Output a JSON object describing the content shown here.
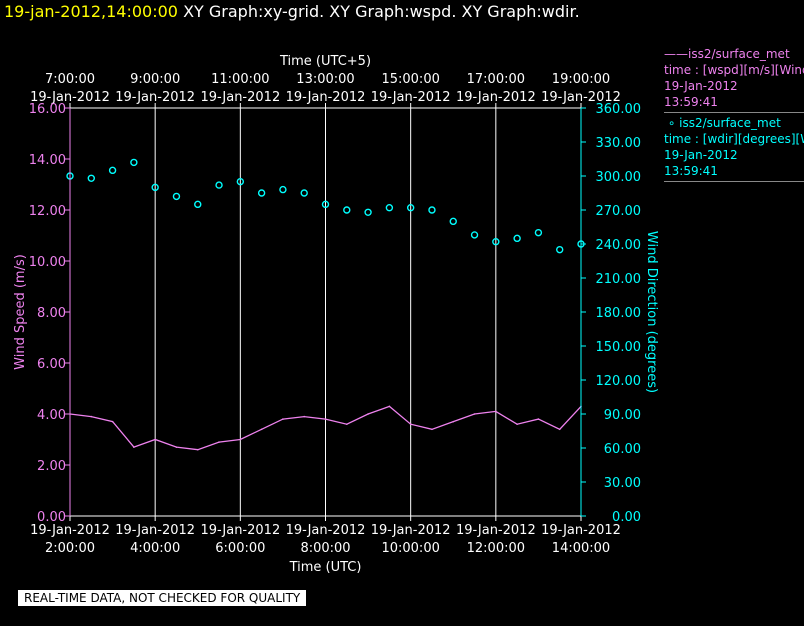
{
  "header": {
    "timestamp": "19-jan-2012,14:00:00",
    "graphs": "XY Graph:xy-grid.  XY Graph:wspd.  XY Graph:wdir."
  },
  "legend": {
    "wspd": {
      "name": "iss2/surface_met",
      "desc": "time : [wspd][m/s][Wind",
      "date": "19-Jan-2012",
      "time": "13:59:41"
    },
    "wdir": {
      "name": "iss2/surface_met",
      "desc": "time : [wdir][degrees][W",
      "date": "19-Jan-2012",
      "time": "13:59:41"
    }
  },
  "quality_note": "REAL-TIME DATA, NOT CHECKED FOR QUALITY",
  "colors": {
    "wspd": "#ee82ee",
    "wdir": "#00ffff",
    "axis_left": "#ee82ee",
    "axis_right": "#00ffff",
    "header_time": "#ffff00"
  },
  "chart_data": {
    "type": "line",
    "xlabel_bottom": "Time (UTC)",
    "xlabel_top": "Time (UTC+5)",
    "ylabel_left": "Wind Speed (m/s)",
    "ylabel_right": "Wind Direction (degrees)",
    "ylim_left": [
      0,
      16
    ],
    "ylim_right": [
      0,
      360
    ],
    "xlim": [
      "2012-01-19 02:00",
      "2012-01-19 14:00"
    ],
    "grid": "vertical",
    "bottom_ticks": [
      {
        "date": "19-Jan-2012",
        "time": "2:00:00"
      },
      {
        "date": "19-Jan-2012",
        "time": "4:00:00"
      },
      {
        "date": "19-Jan-2012",
        "time": "6:00:00"
      },
      {
        "date": "19-Jan-2012",
        "time": "8:00:00"
      },
      {
        "date": "19-Jan-2012",
        "time": "10:00:00"
      },
      {
        "date": "19-Jan-2012",
        "time": "12:00:00"
      },
      {
        "date": "19-Jan-2012",
        "time": "14:00:00"
      }
    ],
    "top_ticks": [
      {
        "time": "7:00:00",
        "date": "19-Jan-2012"
      },
      {
        "time": "9:00:00",
        "date": "19-Jan-2012"
      },
      {
        "time": "11:00:00",
        "date": "19-Jan-2012"
      },
      {
        "time": "13:00:00",
        "date": "19-Jan-2012"
      },
      {
        "time": "15:00:00",
        "date": "19-Jan-2012"
      },
      {
        "time": "17:00:00",
        "date": "19-Jan-2012"
      },
      {
        "time": "19:00:00",
        "date": "19-Jan-2012"
      }
    ],
    "left_ticks": [
      "0.00",
      "2.00",
      "4.00",
      "6.00",
      "8.00",
      "10.00",
      "12.00",
      "14.00",
      "16.00"
    ],
    "right_ticks": [
      "0.00",
      "30.00",
      "60.00",
      "90.00",
      "120.00",
      "150.00",
      "180.00",
      "210.00",
      "240.00",
      "270.00",
      "300.00",
      "330.00",
      "360.00"
    ],
    "series": [
      {
        "name": "iss2/surface_met wspd",
        "axis": "left",
        "style": "line",
        "x": [
          "2012-01-19 02:00",
          "2012-01-19 02:30",
          "2012-01-19 03:00",
          "2012-01-19 03:30",
          "2012-01-19 04:00",
          "2012-01-19 04:30",
          "2012-01-19 05:00",
          "2012-01-19 05:30",
          "2012-01-19 06:00",
          "2012-01-19 06:30",
          "2012-01-19 07:00",
          "2012-01-19 07:30",
          "2012-01-19 08:00",
          "2012-01-19 08:30",
          "2012-01-19 09:00",
          "2012-01-19 09:30",
          "2012-01-19 10:00",
          "2012-01-19 10:30",
          "2012-01-19 11:00",
          "2012-01-19 11:30",
          "2012-01-19 12:00",
          "2012-01-19 12:30",
          "2012-01-19 13:00",
          "2012-01-19 13:30",
          "2012-01-19 14:00"
        ],
        "values": [
          4.0,
          3.9,
          3.7,
          2.7,
          3.0,
          2.7,
          2.6,
          2.9,
          3.0,
          3.4,
          3.8,
          3.9,
          3.8,
          3.6,
          4.0,
          4.3,
          3.6,
          3.4,
          3.7,
          4.0,
          4.1,
          3.6,
          3.8,
          3.4,
          4.3
        ]
      },
      {
        "name": "iss2/surface_met wdir",
        "axis": "right",
        "style": "points",
        "x": [
          "2012-01-19 02:00",
          "2012-01-19 02:30",
          "2012-01-19 03:00",
          "2012-01-19 03:30",
          "2012-01-19 04:00",
          "2012-01-19 04:30",
          "2012-01-19 05:00",
          "2012-01-19 05:30",
          "2012-01-19 06:00",
          "2012-01-19 06:30",
          "2012-01-19 07:00",
          "2012-01-19 07:30",
          "2012-01-19 08:00",
          "2012-01-19 08:30",
          "2012-01-19 09:00",
          "2012-01-19 09:30",
          "2012-01-19 10:00",
          "2012-01-19 10:30",
          "2012-01-19 11:00",
          "2012-01-19 11:30",
          "2012-01-19 12:00",
          "2012-01-19 12:30",
          "2012-01-19 13:00",
          "2012-01-19 13:30",
          "2012-01-19 14:00"
        ],
        "values": [
          300,
          298,
          305,
          312,
          290,
          282,
          275,
          292,
          295,
          285,
          288,
          285,
          275,
          270,
          268,
          272,
          272,
          270,
          260,
          248,
          242,
          245,
          250,
          235,
          240
        ]
      }
    ]
  }
}
